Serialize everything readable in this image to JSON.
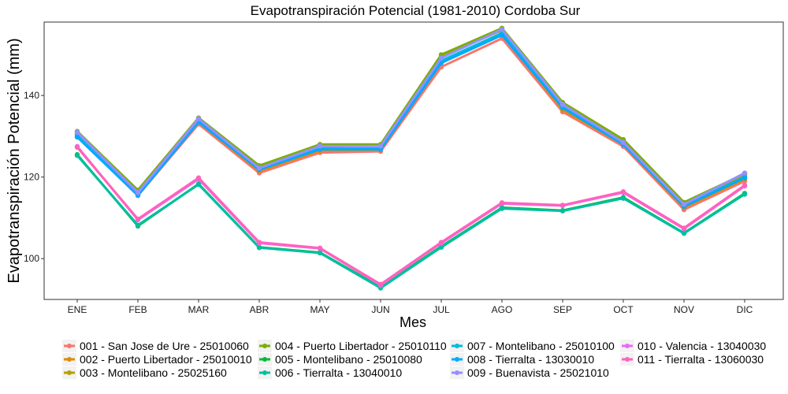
{
  "chart_data": {
    "type": "line",
    "title": "Evapotranspiración Potencial (1981-2010)  Cordoba Sur",
    "xlabel": "Mes",
    "ylabel": "Evapotranspiración Potencial  (mm)",
    "categories": [
      "ENE",
      "FEB",
      "MAR",
      "ABR",
      "MAY",
      "JUN",
      "JUL",
      "AGO",
      "SEP",
      "OCT",
      "NOV",
      "DIC"
    ],
    "ylim": [
      90,
      158
    ],
    "yticks": [
      100,
      120,
      140
    ],
    "grid": false,
    "legend_position": "bottom",
    "series": [
      {
        "name": "001 - San Jose de Ure - 25010060",
        "color": "#F8766D",
        "values": [
          130,
          115.5,
          133,
          121,
          126,
          126.3,
          147,
          154,
          136,
          127.5,
          112,
          119
        ]
      },
      {
        "name": "002 - Puerto Libertador - 25010010",
        "color": "#DE8C00",
        "values": [
          130.5,
          116,
          133.5,
          121.5,
          126.5,
          126.7,
          148,
          155,
          136.5,
          128,
          112.5,
          119.5
        ]
      },
      {
        "name": "003 - Montelibano - 25025160",
        "color": "#B79F00",
        "values": [
          131,
          116.5,
          134,
          122.5,
          127.5,
          127.8,
          149.5,
          156,
          137.8,
          128.8,
          113.5,
          120.5
        ]
      },
      {
        "name": "004 - Puerto Libertador - 25010110",
        "color": "#7CAE00",
        "values": [
          131.2,
          116.8,
          134.5,
          122.8,
          128,
          128,
          150,
          156.5,
          138.3,
          129.2,
          113.8,
          120.8
        ]
      },
      {
        "name": "005 - Montelibano - 25010080",
        "color": "#00BA38",
        "values": [
          125.5,
          108,
          118.3,
          102.8,
          101.5,
          93,
          103,
          112.5,
          111.8,
          115,
          106.3,
          116
        ]
      },
      {
        "name": "006 - Tierralta - 13040010",
        "color": "#00BFA0",
        "values": [
          125.3,
          108.2,
          118.2,
          102.7,
          101.4,
          92.8,
          102.8,
          112.3,
          111.7,
          114.8,
          106.2,
          115.8
        ]
      },
      {
        "name": "007 - Montelibano - 25010100",
        "color": "#00BCD8",
        "values": [
          130.3,
          115.8,
          133.8,
          122,
          127,
          127,
          148.5,
          155.3,
          137.5,
          128.2,
          113,
          120
        ]
      },
      {
        "name": "008 - Tierralta - 13030010",
        "color": "#00A9FF",
        "values": [
          129.8,
          115.5,
          133.5,
          121.8,
          126.8,
          126.8,
          148,
          154.8,
          137,
          128,
          112.8,
          119.8
        ]
      },
      {
        "name": "009 - Buenavista - 25021010",
        "color": "#9590FF",
        "values": [
          131,
          116.2,
          134.3,
          122.2,
          127.6,
          127.6,
          149.2,
          156.2,
          137.8,
          128.5,
          113.3,
          121
        ]
      },
      {
        "name": "010 - Valencia - 13040030",
        "color": "#E76BF3",
        "values": [
          127.5,
          109.5,
          119.5,
          103.8,
          102.5,
          93.5,
          103.8,
          113.5,
          113,
          116.2,
          107.3,
          117.8
        ]
      },
      {
        "name": "011 - Tierralta - 13060030",
        "color": "#FF62BC",
        "values": [
          127.3,
          109.7,
          119.8,
          104,
          102.6,
          93.7,
          104,
          113.7,
          113.1,
          116.4,
          107.5,
          118
        ]
      }
    ]
  }
}
